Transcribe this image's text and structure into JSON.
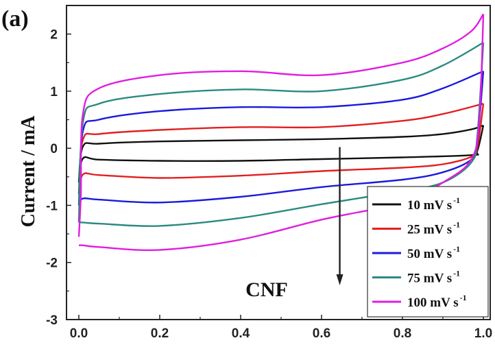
{
  "panel_label": "(a)",
  "annotation": "CNF",
  "chart_data": {
    "type": "line",
    "title": "",
    "xlabel": "",
    "ylabel": "Current / mA",
    "xlim": [
      0.0,
      1.0
    ],
    "ylim": [
      -3,
      2.5
    ],
    "xticks": [
      "0.0",
      "0.2",
      "0.4",
      "0.6",
      "0.8",
      "1.0"
    ],
    "yticks": [
      "-3",
      "-2",
      "-1",
      "0",
      "1",
      "2"
    ],
    "legend_position": "bottom-right",
    "arrow": {
      "x": 0.645,
      "y_from": 0.02,
      "y_to": -2.4,
      "direction": "down"
    },
    "series": [
      {
        "name": "10 mV s",
        "unit_sup": "-1",
        "color": "#111111",
        "upper": [
          [
            0.0,
            -0.6
          ],
          [
            0.01,
            0.03
          ],
          [
            0.05,
            0.08
          ],
          [
            0.2,
            0.12
          ],
          [
            0.4,
            0.14
          ],
          [
            0.6,
            0.16
          ],
          [
            0.8,
            0.2
          ],
          [
            0.9,
            0.25
          ],
          [
            0.97,
            0.33
          ],
          [
            1.0,
            0.4
          ]
        ],
        "lower": [
          [
            1.0,
            0.4
          ],
          [
            0.985,
            -0.05
          ],
          [
            0.97,
            -0.12
          ],
          [
            0.8,
            -0.16
          ],
          [
            0.6,
            -0.19
          ],
          [
            0.4,
            -0.22
          ],
          [
            0.2,
            -0.22
          ],
          [
            0.05,
            -0.2
          ],
          [
            0.01,
            -0.18
          ],
          [
            0.0,
            -0.6
          ]
        ]
      },
      {
        "name": "25 mV s",
        "unit_sup": "-1",
        "color": "#e21f1f",
        "upper": [
          [
            0.0,
            -0.8
          ],
          [
            0.01,
            0.15
          ],
          [
            0.05,
            0.25
          ],
          [
            0.2,
            0.32
          ],
          [
            0.4,
            0.37
          ],
          [
            0.6,
            0.37
          ],
          [
            0.8,
            0.48
          ],
          [
            0.9,
            0.6
          ],
          [
            1.0,
            0.78
          ]
        ],
        "lower": [
          [
            1.0,
            0.78
          ],
          [
            0.985,
            0.0
          ],
          [
            0.97,
            -0.15
          ],
          [
            0.9,
            -0.28
          ],
          [
            0.8,
            -0.34
          ],
          [
            0.6,
            -0.4
          ],
          [
            0.4,
            -0.48
          ],
          [
            0.2,
            -0.52
          ],
          [
            0.05,
            -0.47
          ],
          [
            0.01,
            -0.46
          ],
          [
            0.0,
            -0.8
          ]
        ]
      },
      {
        "name": "50 mV s",
        "unit_sup": "-1",
        "color": "#1a1adc",
        "upper": [
          [
            0.0,
            -1.0
          ],
          [
            0.01,
            0.3
          ],
          [
            0.05,
            0.5
          ],
          [
            0.2,
            0.65
          ],
          [
            0.4,
            0.72
          ],
          [
            0.6,
            0.72
          ],
          [
            0.8,
            0.85
          ],
          [
            0.9,
            1.05
          ],
          [
            1.0,
            1.35
          ]
        ],
        "lower": [
          [
            1.0,
            1.35
          ],
          [
            0.985,
            0.1
          ],
          [
            0.97,
            -0.2
          ],
          [
            0.9,
            -0.42
          ],
          [
            0.8,
            -0.55
          ],
          [
            0.6,
            -0.68
          ],
          [
            0.4,
            -0.85
          ],
          [
            0.2,
            -0.95
          ],
          [
            0.05,
            -0.9
          ],
          [
            0.01,
            -0.88
          ],
          [
            0.0,
            -1.0
          ]
        ]
      },
      {
        "name": "75 mV s",
        "unit_sup": "-1",
        "color": "#2a8a80",
        "upper": [
          [
            0.0,
            -1.3
          ],
          [
            0.01,
            0.45
          ],
          [
            0.05,
            0.78
          ],
          [
            0.2,
            0.95
          ],
          [
            0.4,
            1.03
          ],
          [
            0.6,
            1.0
          ],
          [
            0.8,
            1.2
          ],
          [
            0.9,
            1.45
          ],
          [
            1.0,
            1.85
          ]
        ],
        "lower": [
          [
            1.0,
            1.85
          ],
          [
            0.985,
            0.2
          ],
          [
            0.97,
            -0.25
          ],
          [
            0.9,
            -0.6
          ],
          [
            0.8,
            -0.75
          ],
          [
            0.6,
            -0.98
          ],
          [
            0.4,
            -1.22
          ],
          [
            0.2,
            -1.36
          ],
          [
            0.05,
            -1.32
          ],
          [
            0.01,
            -1.3
          ],
          [
            0.0,
            -1.3
          ]
        ]
      },
      {
        "name": "100 mV s",
        "unit_sup": "-1",
        "color": "#e01ee0",
        "upper": [
          [
            0.0,
            -1.55
          ],
          [
            0.005,
            -0.8
          ],
          [
            0.01,
            0.6
          ],
          [
            0.05,
            1.05
          ],
          [
            0.2,
            1.28
          ],
          [
            0.4,
            1.35
          ],
          [
            0.6,
            1.28
          ],
          [
            0.8,
            1.5
          ],
          [
            0.9,
            1.75
          ],
          [
            0.97,
            2.05
          ],
          [
            1.0,
            2.35
          ]
        ],
        "lower": [
          [
            1.0,
            2.35
          ],
          [
            0.99,
            0.5
          ],
          [
            0.97,
            -0.2
          ],
          [
            0.9,
            -0.6
          ],
          [
            0.8,
            -0.95
          ],
          [
            0.6,
            -1.25
          ],
          [
            0.4,
            -1.6
          ],
          [
            0.2,
            -1.78
          ],
          [
            0.05,
            -1.73
          ],
          [
            0.01,
            -1.7
          ],
          [
            0.0,
            -1.7
          ]
        ]
      }
    ]
  }
}
